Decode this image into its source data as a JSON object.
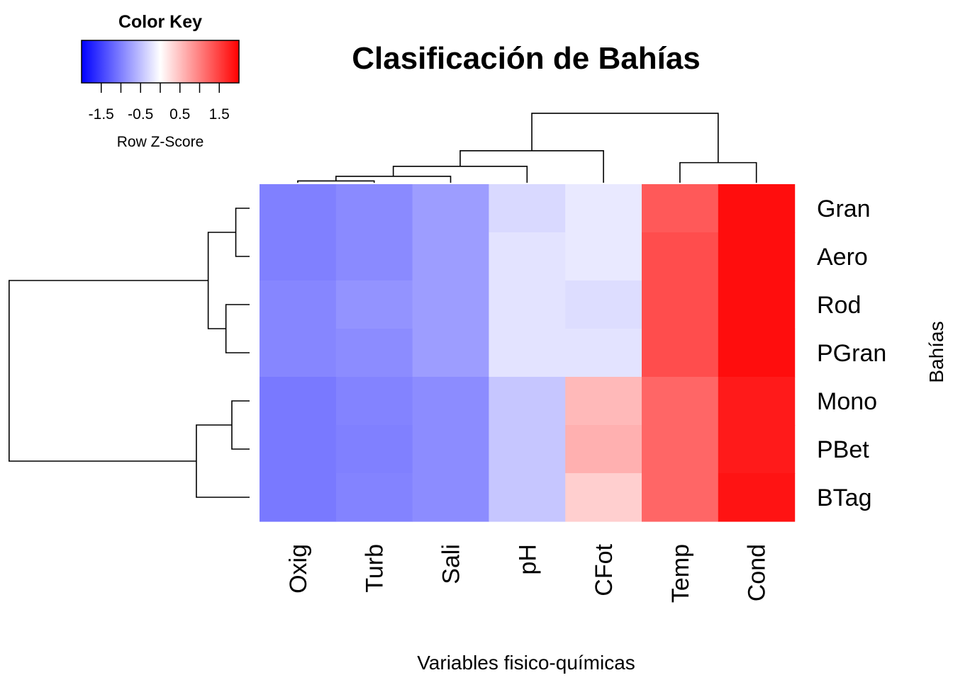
{
  "chart_data": {
    "type": "heatmap",
    "title": "Clasificación de Bahías",
    "xlabel": "Variables fisico-químicas",
    "ylabel": "Bahías",
    "columns": [
      "Oxig",
      "Turb",
      "Sali",
      "pH",
      "CFot",
      "Temp",
      "Cond"
    ],
    "rows": [
      "Gran",
      "Aero",
      "Rod",
      "PGran",
      "Mono",
      "PBet",
      "BTag"
    ],
    "values": [
      [
        -1.0,
        -0.92,
        -0.77,
        -0.3,
        -0.17,
        1.3,
        1.9
      ],
      [
        -1.0,
        -0.92,
        -0.77,
        -0.22,
        -0.17,
        1.4,
        1.9
      ],
      [
        -0.95,
        -0.85,
        -0.77,
        -0.22,
        -0.27,
        1.4,
        1.9
      ],
      [
        -0.95,
        -0.9,
        -0.77,
        -0.22,
        -0.22,
        1.4,
        1.9
      ],
      [
        -1.05,
        -0.97,
        -0.9,
        -0.45,
        0.55,
        1.2,
        1.8
      ],
      [
        -1.05,
        -1.0,
        -0.9,
        -0.45,
        0.62,
        1.2,
        1.8
      ],
      [
        -1.05,
        -0.97,
        -0.9,
        -0.45,
        0.38,
        1.2,
        1.85
      ]
    ],
    "color_key": {
      "title": "Color Key",
      "sublabel": "Row Z-Score",
      "range": [
        -2.0,
        2.0
      ],
      "colors": [
        "#0000ff",
        "#ffffff",
        "#ff0000"
      ],
      "tick_values": [
        -1.5,
        -1.0,
        -0.5,
        0.0,
        0.5,
        1.0,
        1.5
      ],
      "tick_labels": [
        "-1.5",
        "-0.5",
        "0.5",
        "1.5"
      ]
    },
    "column_dendrogram": [
      {
        "a": 0,
        "b": 1,
        "h": 0.1
      },
      {
        "a": 7,
        "b": 2,
        "h": 0.35
      },
      {
        "a": 8,
        "b": 3,
        "h": 0.9
      },
      {
        "a": 9,
        "b": 4,
        "h": 1.75
      },
      {
        "a": 5,
        "b": 6,
        "h": 1.1
      },
      {
        "a": 10,
        "b": 11,
        "h": 3.8
      }
    ],
    "row_dendrogram": [
      {
        "a": 0,
        "b": 1,
        "h": 0.07
      },
      {
        "a": 2,
        "b": 3,
        "h": 0.12
      },
      {
        "a": 4,
        "b": 5,
        "h": 0.09
      },
      {
        "a": 9,
        "b": 6,
        "h": 0.27
      },
      {
        "a": 7,
        "b": 8,
        "h": 0.21
      },
      {
        "a": 11,
        "b": 10,
        "h": 1.22
      }
    ]
  }
}
